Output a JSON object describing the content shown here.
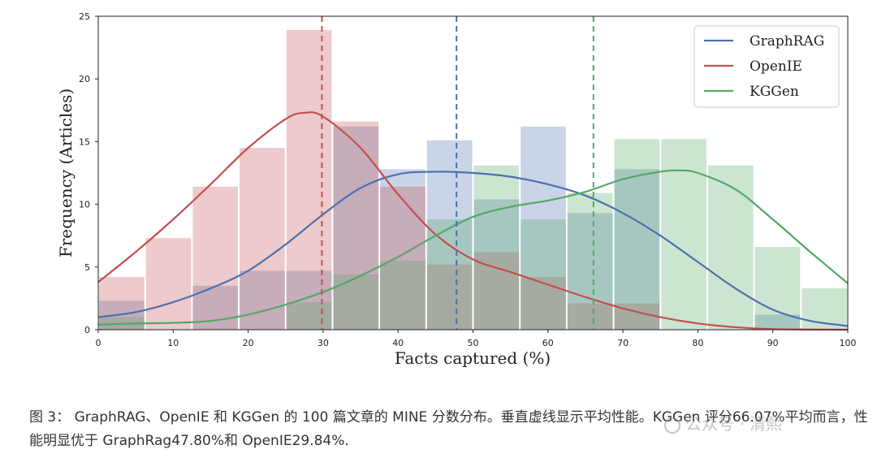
{
  "chart_data": {
    "type": "bar",
    "xlabel": "Facts captured (%)",
    "ylabel": "Frequency (Articles)",
    "xlim": [
      0,
      100
    ],
    "ylim": [
      0,
      25
    ],
    "xticks": [
      0,
      10,
      20,
      30,
      40,
      50,
      60,
      70,
      80,
      90,
      100
    ],
    "yticks": [
      0,
      5,
      10,
      15,
      20,
      25
    ],
    "grid": false,
    "legend_position": "top-right",
    "bin_width": 6.25,
    "series": [
      {
        "name": "GraphRAG",
        "color": "#4c72b0",
        "bins": [
          [
            0,
            2.3
          ],
          [
            12.5,
            3.5
          ],
          [
            18.75,
            4.7
          ],
          [
            25,
            4.7
          ],
          [
            31.25,
            16.2
          ],
          [
            37.5,
            12.8
          ],
          [
            43.75,
            15.1
          ],
          [
            50,
            10.4
          ],
          [
            56.25,
            16.2
          ],
          [
            62.5,
            9.3
          ],
          [
            68.75,
            12.8
          ],
          [
            87.5,
            1.2
          ]
        ],
        "kde": [
          [
            0,
            1.0
          ],
          [
            5,
            1.4
          ],
          [
            10,
            2.2
          ],
          [
            15,
            3.3
          ],
          [
            20,
            4.7
          ],
          [
            25,
            6.8
          ],
          [
            30,
            9.2
          ],
          [
            35,
            11.3
          ],
          [
            40,
            12.4
          ],
          [
            45,
            12.6
          ],
          [
            50,
            12.5
          ],
          [
            55,
            12.2
          ],
          [
            60,
            11.6
          ],
          [
            65,
            10.7
          ],
          [
            70,
            9.3
          ],
          [
            75,
            7.5
          ],
          [
            80,
            5.4
          ],
          [
            85,
            3.3
          ],
          [
            90,
            1.6
          ],
          [
            95,
            0.7
          ],
          [
            100,
            0.3
          ]
        ],
        "mean": 47.8
      },
      {
        "name": "OpenIE",
        "color": "#c44e52",
        "bins": [
          [
            0,
            4.2
          ],
          [
            6.25,
            7.3
          ],
          [
            12.5,
            11.4
          ],
          [
            18.75,
            14.5
          ],
          [
            25,
            23.9
          ],
          [
            31.25,
            16.6
          ],
          [
            37.5,
            11.4
          ],
          [
            43.75,
            5.2
          ],
          [
            50,
            6.2
          ],
          [
            56.25,
            4.2
          ],
          [
            62.5,
            2.1
          ],
          [
            68.75,
            2.1
          ]
        ],
        "kde": [
          [
            0,
            3.8
          ],
          [
            5,
            6.2
          ],
          [
            10,
            8.8
          ],
          [
            15,
            11.6
          ],
          [
            20,
            14.5
          ],
          [
            25,
            16.8
          ],
          [
            27.5,
            17.3
          ],
          [
            30,
            17.0
          ],
          [
            35,
            14.5
          ],
          [
            40,
            10.8
          ],
          [
            45,
            7.6
          ],
          [
            50,
            5.6
          ],
          [
            55,
            4.6
          ],
          [
            60,
            3.6
          ],
          [
            65,
            2.6
          ],
          [
            70,
            1.7
          ],
          [
            75,
            1.0
          ],
          [
            80,
            0.5
          ],
          [
            85,
            0.2
          ],
          [
            90,
            0.05
          ],
          [
            100,
            0.0
          ]
        ],
        "mean": 29.84
      },
      {
        "name": "KGGen",
        "color": "#55a868",
        "bins": [
          [
            0,
            1.0
          ],
          [
            25,
            2.2
          ],
          [
            31.25,
            4.4
          ],
          [
            37.5,
            5.5
          ],
          [
            43.75,
            8.8
          ],
          [
            50,
            13.1
          ],
          [
            56.25,
            8.8
          ],
          [
            62.5,
            10.9
          ],
          [
            68.75,
            15.2
          ],
          [
            75,
            15.2
          ],
          [
            81.25,
            13.1
          ],
          [
            87.5,
            6.6
          ],
          [
            93.75,
            3.3
          ]
        ],
        "kde": [
          [
            0,
            0.4
          ],
          [
            5,
            0.5
          ],
          [
            10,
            0.55
          ],
          [
            15,
            0.7
          ],
          [
            20,
            1.2
          ],
          [
            25,
            2.0
          ],
          [
            30,
            3.0
          ],
          [
            35,
            4.3
          ],
          [
            40,
            5.8
          ],
          [
            45,
            7.5
          ],
          [
            50,
            9.0
          ],
          [
            55,
            9.8
          ],
          [
            60,
            10.3
          ],
          [
            65,
            11.0
          ],
          [
            70,
            12.0
          ],
          [
            75,
            12.6
          ],
          [
            77.5,
            12.7
          ],
          [
            80,
            12.5
          ],
          [
            85,
            11.2
          ],
          [
            90,
            8.8
          ],
          [
            95,
            6.2
          ],
          [
            100,
            3.7
          ]
        ],
        "mean": 66.07
      }
    ]
  },
  "caption": {
    "text": "图 3： GraphRAG、OpenIE 和 KGGen 的 100 篇文章的 MINE 分数分布。垂直虚线显示平均性能。KGGen 评分66.07%平均而言，性能明显优于 GraphRag47.80%和 OpenIE29.84%."
  },
  "watermark": {
    "text": "公众号 · 清熙"
  }
}
